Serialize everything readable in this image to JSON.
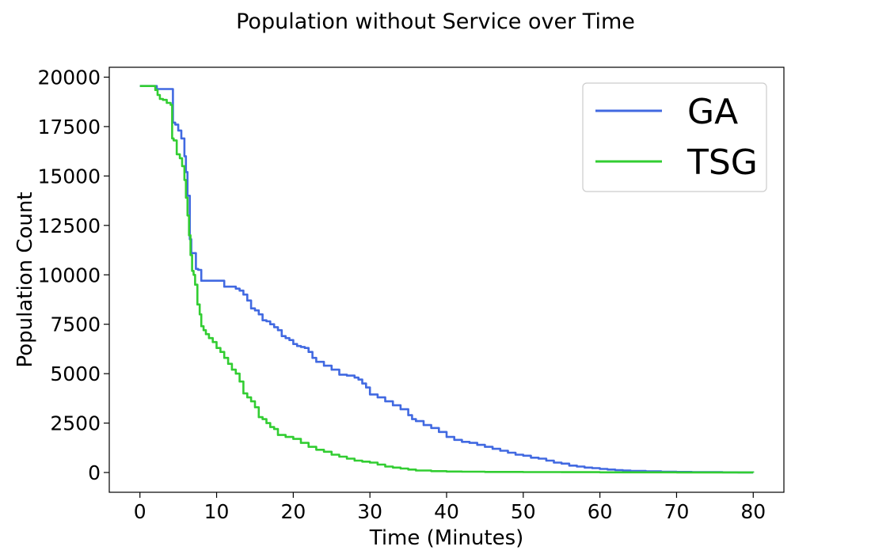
{
  "chart_data": {
    "type": "line",
    "title": "Population without Service over Time",
    "xlabel": "Time (Minutes)",
    "ylabel": "Population Count",
    "xlim": [
      -4,
      84
    ],
    "ylim": [
      -1000,
      20500
    ],
    "xticks": [
      0,
      10,
      20,
      30,
      40,
      50,
      60,
      70,
      80
    ],
    "yticks": [
      0,
      2500,
      5000,
      7500,
      10000,
      12500,
      15000,
      17500,
      20000
    ],
    "grid": false,
    "legend_position": "top-right",
    "series": [
      {
        "name": "GA",
        "color": "#4169E1",
        "x": [
          0,
          2,
          2.2,
          4.2,
          4.3,
          4.6,
          5.0,
          5.4,
          5.8,
          6.0,
          6.2,
          6.5,
          6.7,
          7.0,
          7.3,
          7.6,
          8.0,
          8.5,
          10,
          11,
          12,
          12.5,
          13,
          13.5,
          14,
          14.5,
          15,
          15.5,
          16,
          16.5,
          17,
          17.5,
          18,
          18.5,
          19,
          19.5,
          20,
          20.5,
          21,
          21.5,
          22,
          22.5,
          23,
          24,
          25,
          26,
          27,
          28,
          28.5,
          29,
          29.5,
          30,
          31,
          32,
          33,
          34,
          35,
          35.5,
          36,
          37,
          38,
          39,
          40,
          41,
          42,
          43,
          44,
          45,
          46,
          47,
          48,
          49,
          50,
          51,
          52,
          53,
          54,
          55,
          56,
          57,
          58,
          59,
          60,
          61,
          62,
          63,
          64,
          66,
          68,
          70,
          72,
          74,
          76,
          78,
          80
        ],
        "y": [
          19550,
          19550,
          19400,
          19400,
          17700,
          17600,
          17300,
          16900,
          16000,
          15200,
          14000,
          11800,
          11100,
          11100,
          10300,
          10250,
          9700,
          9700,
          9700,
          9400,
          9400,
          9300,
          9200,
          9000,
          8700,
          8300,
          8200,
          8000,
          7700,
          7650,
          7500,
          7350,
          7200,
          6900,
          6800,
          6700,
          6500,
          6400,
          6350,
          6300,
          6100,
          5800,
          5600,
          5400,
          5200,
          4950,
          4900,
          4800,
          4700,
          4500,
          4300,
          3950,
          3800,
          3600,
          3400,
          3200,
          2900,
          2700,
          2600,
          2400,
          2250,
          2050,
          1800,
          1650,
          1550,
          1500,
          1400,
          1300,
          1200,
          1100,
          1000,
          900,
          850,
          750,
          700,
          600,
          500,
          450,
          350,
          300,
          250,
          220,
          180,
          150,
          120,
          100,
          80,
          60,
          40,
          30,
          20,
          15,
          10,
          5,
          0
        ]
      },
      {
        "name": "TSG",
        "color": "#32CD32",
        "x": [
          0,
          1.5,
          2,
          2.3,
          2.6,
          3,
          3.5,
          4,
          4.2,
          4.4,
          4.8,
          5.2,
          5.5,
          5.8,
          6.0,
          6.2,
          6.4,
          6.6,
          6.8,
          7.0,
          7.2,
          7.5,
          7.8,
          8.0,
          8.3,
          8.6,
          9,
          9.5,
          10,
          10.5,
          11,
          11.5,
          12,
          12.5,
          13,
          13.5,
          14,
          14.5,
          15,
          15.5,
          16,
          16.5,
          17,
          17.5,
          18,
          19,
          20,
          21,
          22,
          23,
          24,
          25,
          26,
          27,
          28,
          29,
          30,
          31,
          32,
          33,
          34,
          35,
          36,
          38,
          40,
          42,
          45,
          50,
          55,
          60,
          70,
          80
        ],
        "y": [
          19550,
          19550,
          19350,
          19100,
          18900,
          18850,
          18700,
          18600,
          16900,
          16800,
          16100,
          15900,
          15500,
          14800,
          13900,
          13000,
          12000,
          11000,
          10200,
          10000,
          9500,
          8500,
          8000,
          7400,
          7200,
          7000,
          6800,
          6600,
          6300,
          6100,
          5800,
          5500,
          5200,
          5000,
          4600,
          4000,
          3800,
          3600,
          3300,
          2800,
          2700,
          2500,
          2300,
          2200,
          1900,
          1800,
          1700,
          1500,
          1300,
          1150,
          1050,
          900,
          800,
          700,
          600,
          550,
          500,
          400,
          300,
          250,
          200,
          150,
          100,
          70,
          50,
          40,
          30,
          20,
          15,
          10,
          5,
          0
        ]
      }
    ]
  }
}
